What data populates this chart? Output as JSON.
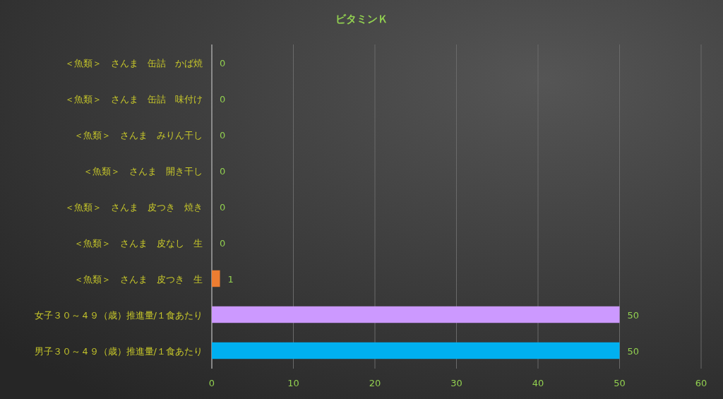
{
  "chart_data": {
    "type": "bar",
    "orientation": "horizontal",
    "title": "ビタミンＫ",
    "categories": [
      "＜魚類＞　さんま　缶詰　かば焼",
      "＜魚類＞　さんま　缶詰　味付け",
      "＜魚類＞　さんま　みりん干し",
      "＜魚類＞　さんま　開き干し",
      "＜魚類＞　さんま　皮つき　焼き",
      "＜魚類＞　さんま　皮なし　生",
      "＜魚類＞　さんま　皮つき　生",
      "女子３０～４９（歳）推進量/１食あたり",
      "男子３０～４９（歳）推進量/１食あたり"
    ],
    "values": [
      0,
      0,
      0,
      0,
      0,
      0,
      1,
      50,
      50
    ],
    "colors": [
      "#ed7d31",
      "#ed7d31",
      "#ed7d31",
      "#ed7d31",
      "#ed7d31",
      "#ed7d31",
      "#ed7d31",
      "#cc99ff",
      "#00b0f0"
    ],
    "xlim": [
      0,
      60
    ],
    "xticks": [
      0,
      10,
      20,
      30,
      40,
      50,
      60
    ],
    "grid": "x",
    "data_labels": true
  }
}
